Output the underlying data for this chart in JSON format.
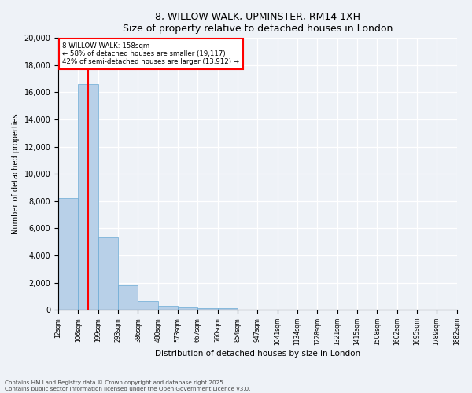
{
  "title1": "8, WILLOW WALK, UPMINSTER, RM14 1XH",
  "title2": "Size of property relative to detached houses in London",
  "xlabel": "Distribution of detached houses by size in London",
  "ylabel": "Number of detached properties",
  "bar_values": [
    8200,
    16600,
    5350,
    1820,
    660,
    290,
    200,
    150,
    100,
    0,
    0,
    0,
    0,
    0,
    0,
    0,
    0,
    0,
    0,
    0
  ],
  "bin_labels": [
    "12sqm",
    "106sqm",
    "199sqm",
    "293sqm",
    "386sqm",
    "480sqm",
    "573sqm",
    "667sqm",
    "760sqm",
    "854sqm",
    "947sqm",
    "1041sqm",
    "1134sqm",
    "1228sqm",
    "1321sqm",
    "1415sqm",
    "1508sqm",
    "1602sqm",
    "1695sqm",
    "1789sqm",
    "1882sqm"
  ],
  "bar_color": "#b8d0e8",
  "bar_edge_color": "#6aaad4",
  "vline_x": 1.5,
  "vline_color": "red",
  "annotation_title": "8 WILLOW WALK: 158sqm",
  "annotation_line1": "← 58% of detached houses are smaller (19,117)",
  "annotation_line2": "42% of semi-detached houses are larger (13,912) →",
  "annotation_box_color": "white",
  "annotation_box_edge": "red",
  "ylim": [
    0,
    20000
  ],
  "yticks": [
    0,
    2000,
    4000,
    6000,
    8000,
    10000,
    12000,
    14000,
    16000,
    18000,
    20000
  ],
  "footer_line1": "Contains HM Land Registry data © Crown copyright and database right 2025.",
  "footer_line2": "Contains public sector information licensed under the Open Government Licence v3.0.",
  "bg_color": "#eef2f7",
  "plot_bg_color": "#eef2f7"
}
